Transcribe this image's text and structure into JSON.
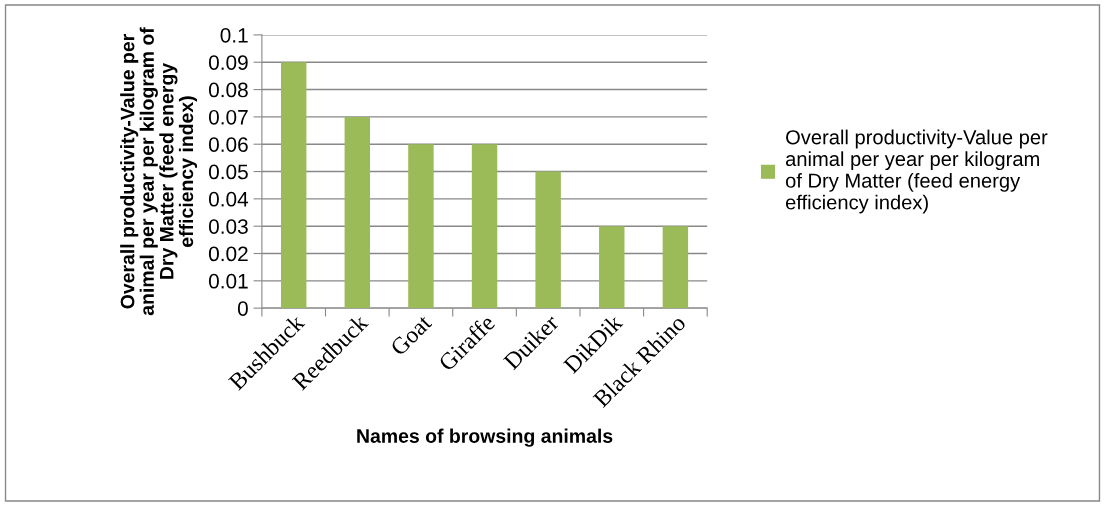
{
  "chart_data": {
    "type": "bar",
    "categories": [
      "Bushbuck",
      "Reedbuck",
      "Goat",
      "Giraffe",
      "Duiker",
      "DikDik",
      "Black Rhino"
    ],
    "series": [
      {
        "name": "Overall productivity-Value per\nanimal per year per kilogram\nof Dry Matter (feed energy\nefficiency index)",
        "color": "#9bbb59",
        "values": [
          0.09,
          0.07,
          0.06,
          0.06,
          0.05,
          0.03,
          0.03
        ]
      }
    ],
    "xlabel": "Names of browsing animals",
    "ylabel": "Overall productivity-Value per\nanimal per year per kilogram of\nDry Matter (feed energy\nefficiency index)",
    "ylim": [
      0,
      0.1
    ],
    "yticks": [
      0,
      0.01,
      0.02,
      0.03,
      0.04,
      0.05,
      0.06,
      0.07,
      0.08,
      0.09,
      0.1
    ],
    "grid": "y",
    "legend": "right"
  }
}
